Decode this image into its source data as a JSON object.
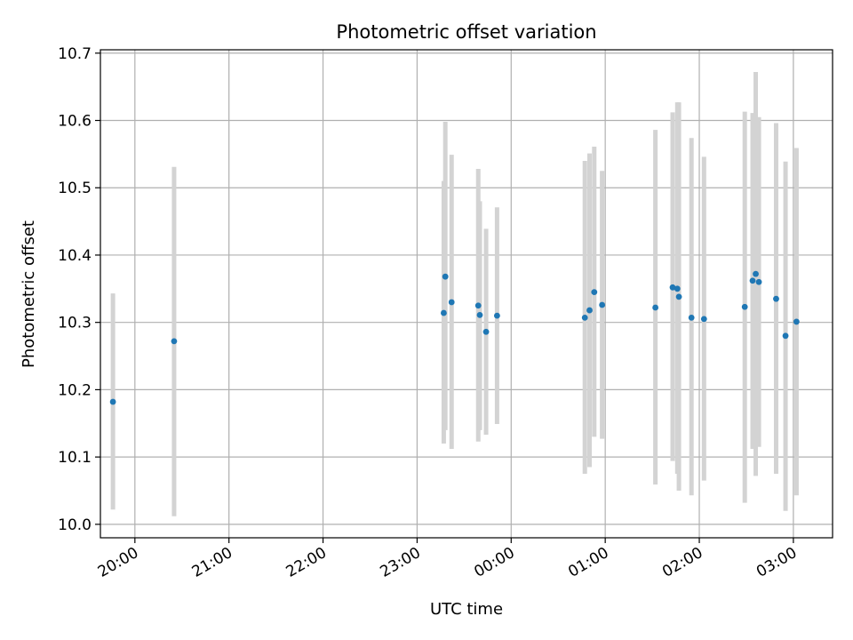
{
  "chart_data": {
    "type": "scatter",
    "title": "Photometric offset variation",
    "xlabel": "UTC time",
    "ylabel": "Photometric offset",
    "x_axis": {
      "type": "time",
      "xlim": [
        "19:38",
        "03:25"
      ],
      "tick_labels": [
        "20:00",
        "21:00",
        "22:00",
        "23:00",
        "00:00",
        "01:00",
        "02:00",
        "03:00"
      ],
      "tick_values": [
        "20:00",
        "21:00",
        "22:00",
        "23:00",
        "24:00",
        "25:00",
        "26:00",
        "27:00"
      ]
    },
    "y_axis": {
      "ylim": [
        9.98,
        10.705
      ],
      "ticks": [
        10.0,
        10.1,
        10.2,
        10.3,
        10.4,
        10.5,
        10.6,
        10.7
      ],
      "tick_labels": [
        "10.0",
        "10.1",
        "10.2",
        "10.3",
        "10.4",
        "10.5",
        "10.6",
        "10.7"
      ]
    },
    "grid": true,
    "legend": "none",
    "colors": {
      "point": "#1f77b4",
      "errorbar": "#d3d3d3",
      "grid": "#b0b0b0"
    },
    "points": [
      {
        "time": "19:46",
        "value": 10.182,
        "low": 10.022,
        "high": 10.343
      },
      {
        "time": "20:25",
        "value": 10.272,
        "low": 10.012,
        "high": 10.531
      },
      {
        "time": "23:17",
        "value": 10.314,
        "low": 10.12,
        "high": 10.51
      },
      {
        "time": "23:18",
        "value": 10.368,
        "low": 10.14,
        "high": 10.598
      },
      {
        "time": "23:22",
        "value": 10.33,
        "low": 10.112,
        "high": 10.549
      },
      {
        "time": "23:39",
        "value": 10.325,
        "low": 10.123,
        "high": 10.528
      },
      {
        "time": "23:40",
        "value": 10.311,
        "low": 10.14,
        "high": 10.48
      },
      {
        "time": "23:44",
        "value": 10.286,
        "low": 10.133,
        "high": 10.439
      },
      {
        "time": "23:51",
        "value": 10.31,
        "low": 10.149,
        "high": 10.471
      },
      {
        "time": "00:47",
        "value": 10.307,
        "low": 10.075,
        "high": 10.54
      },
      {
        "time": "00:50",
        "value": 10.318,
        "low": 10.085,
        "high": 10.551
      },
      {
        "time": "00:53",
        "value": 10.345,
        "low": 10.13,
        "high": 10.561
      },
      {
        "time": "00:58",
        "value": 10.326,
        "low": 10.127,
        "high": 10.525
      },
      {
        "time": "01:32",
        "value": 10.322,
        "low": 10.059,
        "high": 10.586
      },
      {
        "time": "01:43",
        "value": 10.352,
        "low": 10.094,
        "high": 10.612
      },
      {
        "time": "01:46",
        "value": 10.35,
        "low": 10.075,
        "high": 10.627
      },
      {
        "time": "01:47",
        "value": 10.338,
        "low": 10.05,
        "high": 10.627
      },
      {
        "time": "01:55",
        "value": 10.307,
        "low": 10.043,
        "high": 10.574
      },
      {
        "time": "02:03",
        "value": 10.305,
        "low": 10.065,
        "high": 10.546
      },
      {
        "time": "02:29",
        "value": 10.323,
        "low": 10.032,
        "high": 10.613
      },
      {
        "time": "02:34",
        "value": 10.362,
        "low": 10.112,
        "high": 10.611
      },
      {
        "time": "02:36",
        "value": 10.372,
        "low": 10.072,
        "high": 10.672
      },
      {
        "time": "02:38",
        "value": 10.36,
        "low": 10.115,
        "high": 10.605
      },
      {
        "time": "02:49",
        "value": 10.335,
        "low": 10.075,
        "high": 10.596
      },
      {
        "time": "02:55",
        "value": 10.28,
        "low": 10.02,
        "high": 10.539
      },
      {
        "time": "03:02",
        "value": 10.301,
        "low": 10.043,
        "high": 10.559
      }
    ]
  }
}
